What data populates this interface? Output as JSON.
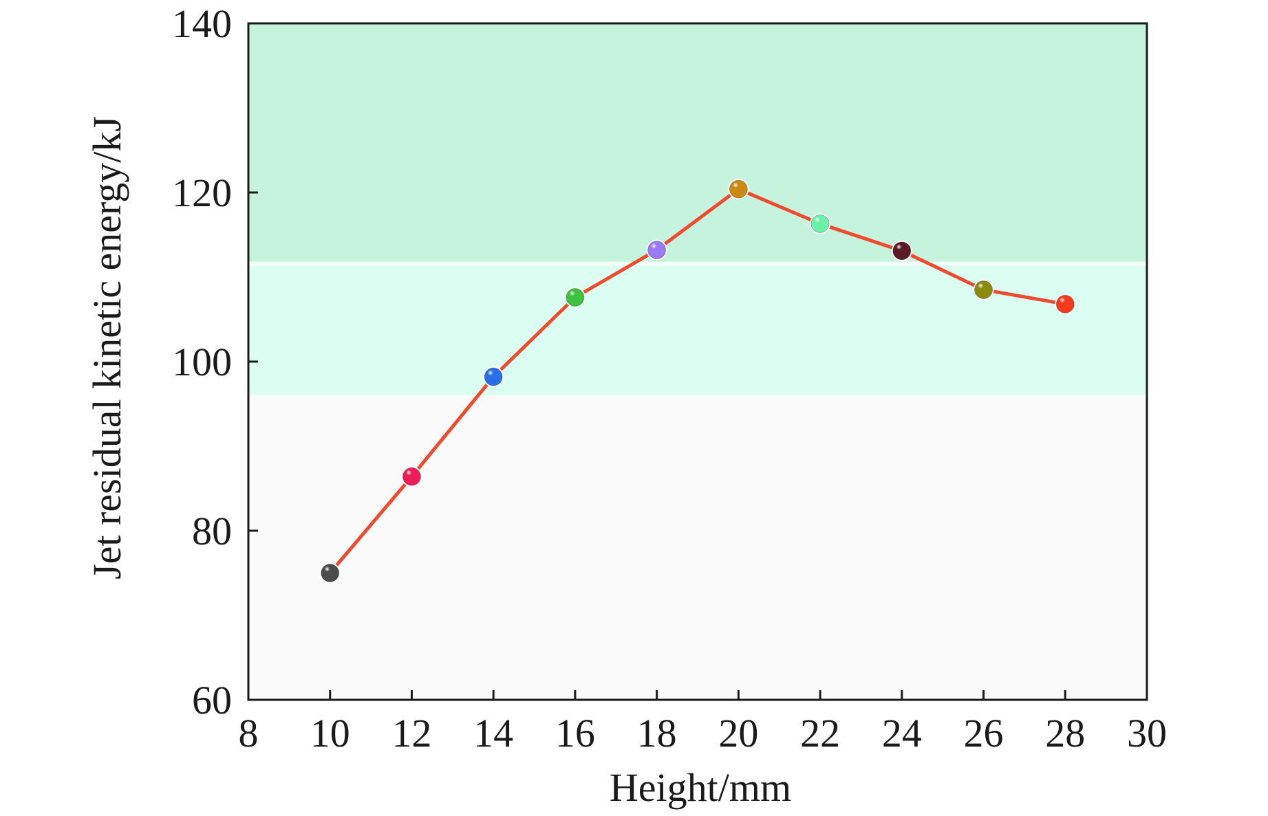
{
  "chart_data": {
    "type": "line",
    "title": "",
    "xlabel": "Height/mm",
    "ylabel": "Jet residual kinetic energy/kJ",
    "xlim": [
      8,
      30
    ],
    "ylim": [
      60,
      140
    ],
    "xticks": [
      8,
      10,
      12,
      14,
      16,
      18,
      20,
      22,
      24,
      26,
      28,
      30
    ],
    "yticks": [
      60,
      80,
      100,
      120,
      140
    ],
    "grid": false,
    "legend": "none",
    "background_bands": [
      {
        "y_from": 111.5,
        "y_to": 140,
        "color": "#c5f3de"
      },
      {
        "y_from": 96,
        "y_to": 111.5,
        "color": "#dbfdf2"
      },
      {
        "y_from": 60,
        "y_to": 96,
        "color": "#fafafa"
      }
    ],
    "band_divider": {
      "y": 111.5,
      "color": "#f2fffa"
    },
    "line_color": "#f04a2e",
    "series": [
      {
        "x": [
          10,
          12,
          14,
          16,
          18,
          20,
          22,
          24,
          26,
          28
        ],
        "values": [
          75.0,
          86.4,
          98.2,
          107.6,
          113.2,
          120.4,
          116.3,
          113.1,
          108.5,
          106.8
        ],
        "marker_colors": [
          "#4b4b4b",
          "#ee1d5a",
          "#2a6fe6",
          "#3fc23f",
          "#9a7bf2",
          "#cc8a14",
          "#6df0a8",
          "#5a1a26",
          "#8a8a10",
          "#f23a1c"
        ]
      }
    ]
  }
}
